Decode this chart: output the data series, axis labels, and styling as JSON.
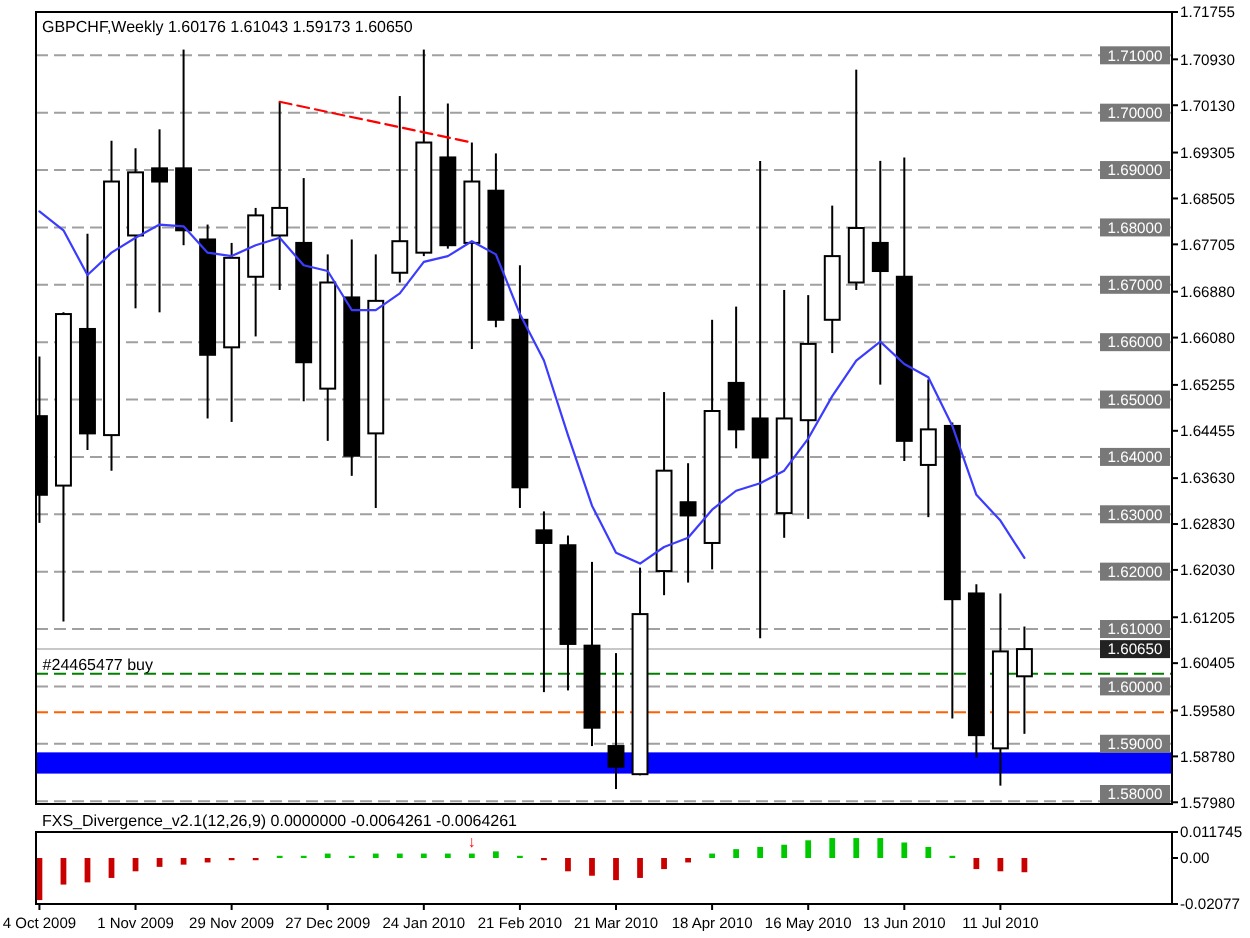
{
  "chart_data": [
    {
      "type": "candlestick",
      "title": "GBPCHF,Weekly 1.60176 1.61043 1.59173 1.60650",
      "x": [
        "2009-10-04",
        "2009-10-11",
        "2009-10-18",
        "2009-10-25",
        "2009-11-01",
        "2009-11-08",
        "2009-11-15",
        "2009-11-22",
        "2009-11-29",
        "2009-12-06",
        "2009-12-13",
        "2009-12-20",
        "2009-12-27",
        "2010-01-03",
        "2010-01-10",
        "2010-01-17",
        "2010-01-24",
        "2010-01-31",
        "2010-02-07",
        "2010-02-14",
        "2010-02-21",
        "2010-02-28",
        "2010-03-07",
        "2010-03-14",
        "2010-03-21",
        "2010-03-28",
        "2010-04-04",
        "2010-04-11",
        "2010-04-18",
        "2010-04-25",
        "2010-05-02",
        "2010-05-09",
        "2010-05-16",
        "2010-05-23",
        "2010-05-30",
        "2010-06-06",
        "2010-06-13",
        "2010-06-20",
        "2010-06-27",
        "2010-07-04",
        "2010-07-11",
        "2010-07-18"
      ],
      "ohlc": [
        [
          1.6471,
          1.6575,
          1.6285,
          1.6334
        ],
        [
          1.635,
          1.6652,
          1.6113,
          1.6649
        ],
        [
          1.6623,
          1.6789,
          1.6412,
          1.6441
        ],
        [
          1.6438,
          1.6951,
          1.6376,
          1.688
        ],
        [
          1.6786,
          1.6938,
          1.6659,
          1.6896
        ],
        [
          1.6903,
          1.6971,
          1.6652,
          1.688
        ],
        [
          1.6903,
          1.711,
          1.6769,
          1.6795
        ],
        [
          1.6779,
          1.6805,
          1.6467,
          1.6578
        ],
        [
          1.6591,
          1.6773,
          1.6461,
          1.6747
        ],
        [
          1.6714,
          1.6834,
          1.661,
          1.6821
        ],
        [
          1.6786,
          1.7019,
          1.6691,
          1.6834
        ],
        [
          1.6773,
          1.6886,
          1.6497,
          1.6565
        ],
        [
          1.6519,
          1.6753,
          1.6428,
          1.6704
        ],
        [
          1.6678,
          1.6779,
          1.6367,
          1.6402
        ],
        [
          1.6441,
          1.6753,
          1.6311,
          1.6672
        ],
        [
          1.6721,
          1.7029,
          1.6704,
          1.6776
        ],
        [
          1.6756,
          1.711,
          1.675,
          1.6948
        ],
        [
          1.6922,
          1.7016,
          1.6763,
          1.6769
        ],
        [
          1.6773,
          1.6948,
          1.6588,
          1.688
        ],
        [
          1.6864,
          1.6929,
          1.6626,
          1.6639
        ],
        [
          1.6639,
          1.6734,
          1.6311,
          1.6347
        ],
        [
          1.6272,
          1.6305,
          1.599,
          1.625
        ],
        [
          1.6246,
          1.6263,
          1.5993,
          1.6074
        ],
        [
          1.6071,
          1.6217,
          1.5896,
          1.5928
        ],
        [
          1.5896,
          1.6058,
          1.5821,
          1.586
        ],
        [
          1.5847,
          1.6207,
          1.5845,
          1.6126
        ],
        [
          1.6201,
          1.6513,
          1.6159,
          1.6376
        ],
        [
          1.6321,
          1.6389,
          1.6181,
          1.6298
        ],
        [
          1.625,
          1.6639,
          1.6204,
          1.648
        ],
        [
          1.6529,
          1.6662,
          1.6415,
          1.6448
        ],
        [
          1.6467,
          1.6916,
          1.6084,
          1.6399
        ],
        [
          1.6302,
          1.6691,
          1.6259,
          1.6467
        ],
        [
          1.6464,
          1.6682,
          1.6292,
          1.6597
        ],
        [
          1.6639,
          1.6838,
          1.6581,
          1.675
        ],
        [
          1.6704,
          1.7075,
          1.6691,
          1.6799
        ],
        [
          1.6773,
          1.6916,
          1.6526,
          1.6724
        ],
        [
          1.6714,
          1.6922,
          1.6393,
          1.6428
        ],
        [
          1.6386,
          1.6535,
          1.6295,
          1.6448
        ],
        [
          1.6454,
          1.646,
          1.5944,
          1.6152
        ],
        [
          1.6162,
          1.6178,
          1.5876,
          1.5915
        ],
        [
          1.5892,
          1.6162,
          1.5827,
          1.6061
        ],
        [
          1.60176,
          1.61043,
          1.59173,
          1.6065
        ]
      ],
      "series": [
        {
          "type": "line",
          "color": "#3c3cff",
          "values": [
            1.6828,
            1.6795,
            1.6717,
            1.6756,
            1.6782,
            1.6805,
            1.6802,
            1.6756,
            1.675,
            1.6769,
            1.6782,
            1.6734,
            1.6724,
            1.6656,
            1.6656,
            1.6685,
            1.674,
            1.675,
            1.6776,
            1.6753,
            1.6649,
            1.6568,
            1.6438,
            1.6315,
            1.6233,
            1.6214,
            1.6243,
            1.6259,
            1.6308,
            1.6341,
            1.6354,
            1.6376,
            1.6432,
            1.6506,
            1.6568,
            1.6601,
            1.6562,
            1.6539,
            1.6454,
            1.6334,
            1.6289,
            1.6224
          ]
        },
        {
          "type": "line",
          "color": "#ff0000",
          "line_style": "dashed",
          "x": [
            "2009-12-13",
            "2010-02-07"
          ],
          "values": [
            1.7019,
            1.6948
          ]
        }
      ],
      "xlim": [
        "2009-10-03",
        "2010-08-30"
      ],
      "ylim": [
        1.5795,
        1.71755
      ],
      "yticks": [
        1.71755,
        {
          "value": 1.7093,
          "label": "1.70930"
        },
        {
          "value": 1.7013,
          "label": "1.70130"
        },
        1.69305,
        1.68505,
        1.67705,
        {
          "value": 1.6688,
          "label": "1.66880"
        },
        {
          "value": 1.6608,
          "label": "1.66080"
        },
        1.65255,
        1.64455,
        {
          "value": 1.6363,
          "label": "1.63630"
        },
        {
          "value": 1.6283,
          "label": "1.62830"
        },
        {
          "value": 1.6203,
          "label": "1.62030"
        },
        1.61205,
        1.60405,
        {
          "value": 1.5958,
          "label": "1.59580"
        },
        {
          "value": 1.5878,
          "label": "1.58780"
        },
        {
          "value": 1.5798,
          "label": "1.57980"
        }
      ],
      "tick_labels": "y",
      "ref_lines": [
        {
          "axis": "y",
          "value": 1.71,
          "label": "1.71000",
          "color": "#a0a0a0",
          "line_style": "dashed"
        },
        {
          "axis": "y",
          "value": 1.7,
          "label": "1.70000",
          "color": "#a0a0a0",
          "line_style": "dashed"
        },
        {
          "axis": "y",
          "value": 1.69,
          "label": "1.69000",
          "color": "#a0a0a0",
          "line_style": "dashed"
        },
        {
          "axis": "y",
          "value": 1.68,
          "label": "1.68000",
          "color": "#a0a0a0",
          "line_style": "dashed"
        },
        {
          "axis": "y",
          "value": 1.67,
          "label": "1.67000",
          "color": "#a0a0a0",
          "line_style": "dashed"
        },
        {
          "axis": "y",
          "value": 1.66,
          "label": "1.66000",
          "color": "#a0a0a0",
          "line_style": "dashed"
        },
        {
          "axis": "y",
          "value": 1.65,
          "label": "1.65000",
          "color": "#a0a0a0",
          "line_style": "dashed"
        },
        {
          "axis": "y",
          "value": 1.64,
          "label": "1.64000",
          "color": "#a0a0a0",
          "line_style": "dashed"
        },
        {
          "axis": "y",
          "value": 1.63,
          "label": "1.63000",
          "color": "#a0a0a0",
          "line_style": "dashed"
        },
        {
          "axis": "y",
          "value": 1.62,
          "label": "1.62000",
          "color": "#a0a0a0",
          "line_style": "dashed"
        },
        {
          "axis": "y",
          "value": 1.61,
          "label": "1.61000",
          "color": "#a0a0a0",
          "line_style": "dashed"
        },
        {
          "axis": "y",
          "value": 1.6,
          "label": "1.60000",
          "color": "#a0a0a0",
          "line_style": "dashed"
        },
        {
          "axis": "y",
          "value": 1.59,
          "label": "1.59000",
          "color": "#a0a0a0",
          "line_style": "dashed"
        },
        {
          "axis": "y",
          "value": 1.58,
          "label": "1.58000",
          "color": "#a0a0a0",
          "line_style": "dashed"
        },
        {
          "axis": "y",
          "value": 1.6065,
          "label": "1.60650",
          "color": "#c8c8c8"
        },
        {
          "axis": "y",
          "value": 1.6022,
          "color": "#008000",
          "line_style": "dashed"
        },
        {
          "axis": "y",
          "value": 1.5955,
          "color": "#ff6000",
          "line_style": "dashed"
        }
      ],
      "bands": [
        {
          "axis": "y",
          "from": 1.5848,
          "to": 1.5885,
          "color": "#0000ff"
        }
      ],
      "annotations": [
        {
          "text": "#24465477 buy",
          "x": "2009-10-21",
          "y": 1.6022
        }
      ]
    },
    {
      "type": "bar",
      "title": "FXS_Divergence_v2.1(12,26,9) 0.0000000 -0.0064261 -0.0064261",
      "x": [
        "2009-10-04",
        "2009-10-11",
        "2009-10-18",
        "2009-10-25",
        "2009-11-01",
        "2009-11-08",
        "2009-11-15",
        "2009-11-22",
        "2009-11-29",
        "2009-12-06",
        "2009-12-13",
        "2009-12-20",
        "2009-12-27",
        "2010-01-03",
        "2010-01-10",
        "2010-01-17",
        "2010-01-24",
        "2010-01-31",
        "2010-02-07",
        "2010-02-14",
        "2010-02-21",
        "2010-02-28",
        "2010-03-07",
        "2010-03-14",
        "2010-03-21",
        "2010-03-28",
        "2010-04-04",
        "2010-04-11",
        "2010-04-18",
        "2010-04-25",
        "2010-05-02",
        "2010-05-09",
        "2010-05-16",
        "2010-05-23",
        "2010-05-30",
        "2010-06-06",
        "2010-06-13",
        "2010-06-20",
        "2010-06-27",
        "2010-07-04",
        "2010-07-11",
        "2010-07-18"
      ],
      "values": [
        -0.019,
        -0.012,
        -0.011,
        -0.009,
        -0.006,
        -0.004,
        -0.003,
        -0.002,
        -0.001,
        -0.001,
        0.001,
        0.001,
        0.002,
        0.001,
        0.002,
        0.002,
        0.002,
        0.002,
        0.002,
        0.003,
        0.001,
        -0.001,
        -0.006,
        -0.008,
        -0.01,
        -0.009,
        -0.005,
        -0.002,
        0.002,
        0.004,
        0.005,
        0.006,
        0.008,
        0.009,
        0.009,
        0.009,
        0.007,
        0.005,
        0.001,
        -0.005,
        -0.006,
        -0.0064261
      ],
      "colors": [
        "#c80000",
        "#c80000",
        "#c80000",
        "#c80000",
        "#c80000",
        "#c80000",
        "#c80000",
        "#c80000",
        "#c80000",
        "#c80000",
        "#00c800",
        "#00c800",
        "#00c800",
        "#00c800",
        "#00c800",
        "#00c800",
        "#00c800",
        "#00c800",
        "#00c800",
        "#00c800",
        "#00c800",
        "#c80000",
        "#c80000",
        "#c80000",
        "#c80000",
        "#c80000",
        "#c80000",
        "#c80000",
        "#00c800",
        "#00c800",
        "#00c800",
        "#00c800",
        "#00c800",
        "#00c800",
        "#00c800",
        "#00c800",
        "#00c800",
        "#00c800",
        "#00c800",
        "#c80000",
        "#c80000",
        "#c80000"
      ],
      "xlim": [
        "2009-10-03",
        "2010-08-30"
      ],
      "xticks": [
        {
          "value": "2009-10-04",
          "label": "4 Oct 2009"
        },
        {
          "value": "2009-11-01",
          "label": "1 Nov 2009"
        },
        {
          "value": "2009-11-29",
          "label": "29 Nov 2009"
        },
        {
          "value": "2009-12-27",
          "label": "27 Dec 2009"
        },
        {
          "value": "2010-01-24",
          "label": "24 Jan 2010"
        },
        {
          "value": "2010-02-21",
          "label": "21 Feb 2010"
        },
        {
          "value": "2010-03-21",
          "label": "21 Mar 2010"
        },
        {
          "value": "2010-04-18",
          "label": "18 Apr 2010"
        },
        {
          "value": "2010-05-16",
          "label": "16 May 2010"
        },
        {
          "value": "2010-06-13",
          "label": "13 Jun 2010"
        },
        {
          "value": "2010-07-11",
          "label": "11 Jul 2010"
        }
      ],
      "ylim": [
        -0.02077,
        0.011745
      ],
      "yticks": [
        0.011745,
        {
          "value": 0,
          "label": "0.00"
        },
        -0.02077
      ],
      "annotations": [
        {
          "text": "↓",
          "x": "2010-02-07",
          "y": 0.003
        }
      ]
    }
  ]
}
